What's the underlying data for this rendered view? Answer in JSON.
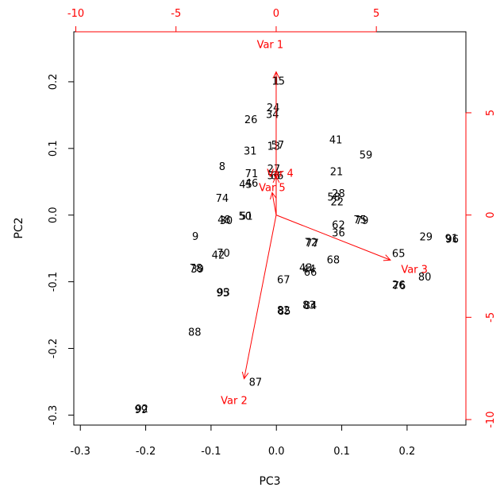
{
  "chart_data": {
    "type": "scatter",
    "subtype": "biplot",
    "title": "",
    "xlabel": "PC3",
    "ylabel": "PC2",
    "xlim": [
      -0.31,
      0.29
    ],
    "ylim": [
      -0.315,
      0.275
    ],
    "xticks": [
      -0.3,
      -0.2,
      -0.1,
      0.0,
      0.1,
      0.2
    ],
    "yticks": [
      -0.3,
      -0.2,
      -0.1,
      0.0,
      0.1,
      0.2
    ],
    "secondary_xlim": [
      -10.1,
      9.47
    ],
    "secondary_ylim": [
      -10.27,
      8.96
    ],
    "secondary_xticks": [
      -10,
      -5,
      0,
      5
    ],
    "secondary_yticks": [
      -10,
      -5,
      0,
      5
    ],
    "colors": {
      "points": "#000000",
      "variables": "#ff0000",
      "frame": "#000000"
    },
    "points": [
      {
        "label": "1",
        "x": 0.0,
        "y": 0.2
      },
      {
        "label": "15",
        "x": 0.003,
        "y": 0.2
      },
      {
        "label": "24",
        "x": -0.005,
        "y": 0.16
      },
      {
        "label": "34",
        "x": -0.006,
        "y": 0.15
      },
      {
        "label": "26",
        "x": -0.039,
        "y": 0.142
      },
      {
        "label": "41",
        "x": 0.091,
        "y": 0.112
      },
      {
        "label": "13",
        "x": -0.004,
        "y": 0.102
      },
      {
        "label": "57",
        "x": 0.002,
        "y": 0.104
      },
      {
        "label": "31",
        "x": -0.04,
        "y": 0.095
      },
      {
        "label": "59",
        "x": 0.137,
        "y": 0.089
      },
      {
        "label": "8",
        "x": -0.083,
        "y": 0.072
      },
      {
        "label": "27",
        "x": -0.004,
        "y": 0.068
      },
      {
        "label": "21",
        "x": 0.092,
        "y": 0.064
      },
      {
        "label": "71",
        "x": -0.038,
        "y": 0.061
      },
      {
        "label": "46",
        "x": -0.038,
        "y": 0.047
      },
      {
        "label": "45",
        "x": -0.047,
        "y": 0.045
      },
      {
        "label": "56",
        "x": -0.004,
        "y": 0.058
      },
      {
        "label": "66",
        "x": 0.001,
        "y": 0.058
      },
      {
        "label": "28",
        "x": 0.095,
        "y": 0.031
      },
      {
        "label": "58",
        "x": 0.088,
        "y": 0.026
      },
      {
        "label": "22",
        "x": 0.093,
        "y": 0.019
      },
      {
        "label": "74",
        "x": -0.083,
        "y": 0.024
      },
      {
        "label": "51",
        "x": -0.046,
        "y": -0.003
      },
      {
        "label": "50",
        "x": -0.048,
        "y": -0.003
      },
      {
        "label": "48",
        "x": -0.08,
        "y": -0.008
      },
      {
        "label": "30",
        "x": -0.077,
        "y": -0.009
      },
      {
        "label": "75",
        "x": 0.128,
        "y": -0.008
      },
      {
        "label": "79",
        "x": 0.131,
        "y": -0.009
      },
      {
        "label": "62",
        "x": 0.095,
        "y": -0.016
      },
      {
        "label": "36",
        "x": 0.095,
        "y": -0.028
      },
      {
        "label": "9",
        "x": -0.124,
        "y": -0.033
      },
      {
        "label": "29",
        "x": 0.229,
        "y": -0.034
      },
      {
        "label": "91",
        "x": 0.268,
        "y": -0.036
      },
      {
        "label": "96",
        "x": 0.269,
        "y": -0.037
      },
      {
        "label": "72",
        "x": 0.053,
        "y": -0.042
      },
      {
        "label": "77",
        "x": 0.055,
        "y": -0.043
      },
      {
        "label": "65",
        "x": 0.187,
        "y": -0.059
      },
      {
        "label": "42",
        "x": -0.089,
        "y": -0.061
      },
      {
        "label": "70",
        "x": -0.081,
        "y": -0.058
      },
      {
        "label": "68",
        "x": 0.087,
        "y": -0.068
      },
      {
        "label": "78",
        "x": -0.123,
        "y": -0.081
      },
      {
        "label": "39",
        "x": -0.121,
        "y": -0.082
      },
      {
        "label": "43",
        "x": 0.045,
        "y": -0.08
      },
      {
        "label": "44",
        "x": 0.05,
        "y": -0.082
      },
      {
        "label": "66",
        "x": 0.052,
        "y": -0.087
      },
      {
        "label": "80",
        "x": 0.227,
        "y": -0.094
      },
      {
        "label": "67",
        "x": 0.011,
        "y": -0.098
      },
      {
        "label": "26",
        "x": 0.187,
        "y": -0.106
      },
      {
        "label": "76",
        "x": 0.188,
        "y": -0.107
      },
      {
        "label": "93",
        "x": -0.081,
        "y": -0.117
      },
      {
        "label": "95",
        "x": -0.082,
        "y": -0.118
      },
      {
        "label": "83",
        "x": 0.05,
        "y": -0.136
      },
      {
        "label": "84",
        "x": 0.052,
        "y": -0.137
      },
      {
        "label": "82",
        "x": 0.011,
        "y": -0.144
      },
      {
        "label": "85",
        "x": 0.012,
        "y": -0.145
      },
      {
        "label": "88",
        "x": -0.125,
        "y": -0.177
      },
      {
        "label": "87",
        "x": -0.032,
        "y": -0.252
      },
      {
        "label": "92",
        "x": -0.206,
        "y": -0.292
      },
      {
        "label": "99",
        "x": -0.207,
        "y": -0.293
      }
    ],
    "variables": [
      {
        "label": "Var 1",
        "x": 0.0,
        "y": 7.0,
        "label_x": -0.3,
        "label_y": 8.3
      },
      {
        "label": "Var 2",
        "x": -1.6,
        "y": -8.0,
        "label_x": -2.1,
        "label_y": -9.1
      },
      {
        "label": "Var 3",
        "x": 5.7,
        "y": -2.2,
        "label_x": 6.9,
        "label_y": -2.7
      },
      {
        "label": "Var 4",
        "x": 0.0,
        "y": 1.9,
        "label_x": 0.2,
        "label_y": 2.0
      },
      {
        "label": "Var 5",
        "x": -0.2,
        "y": 1.1,
        "label_x": -0.2,
        "label_y": 1.3
      }
    ]
  }
}
